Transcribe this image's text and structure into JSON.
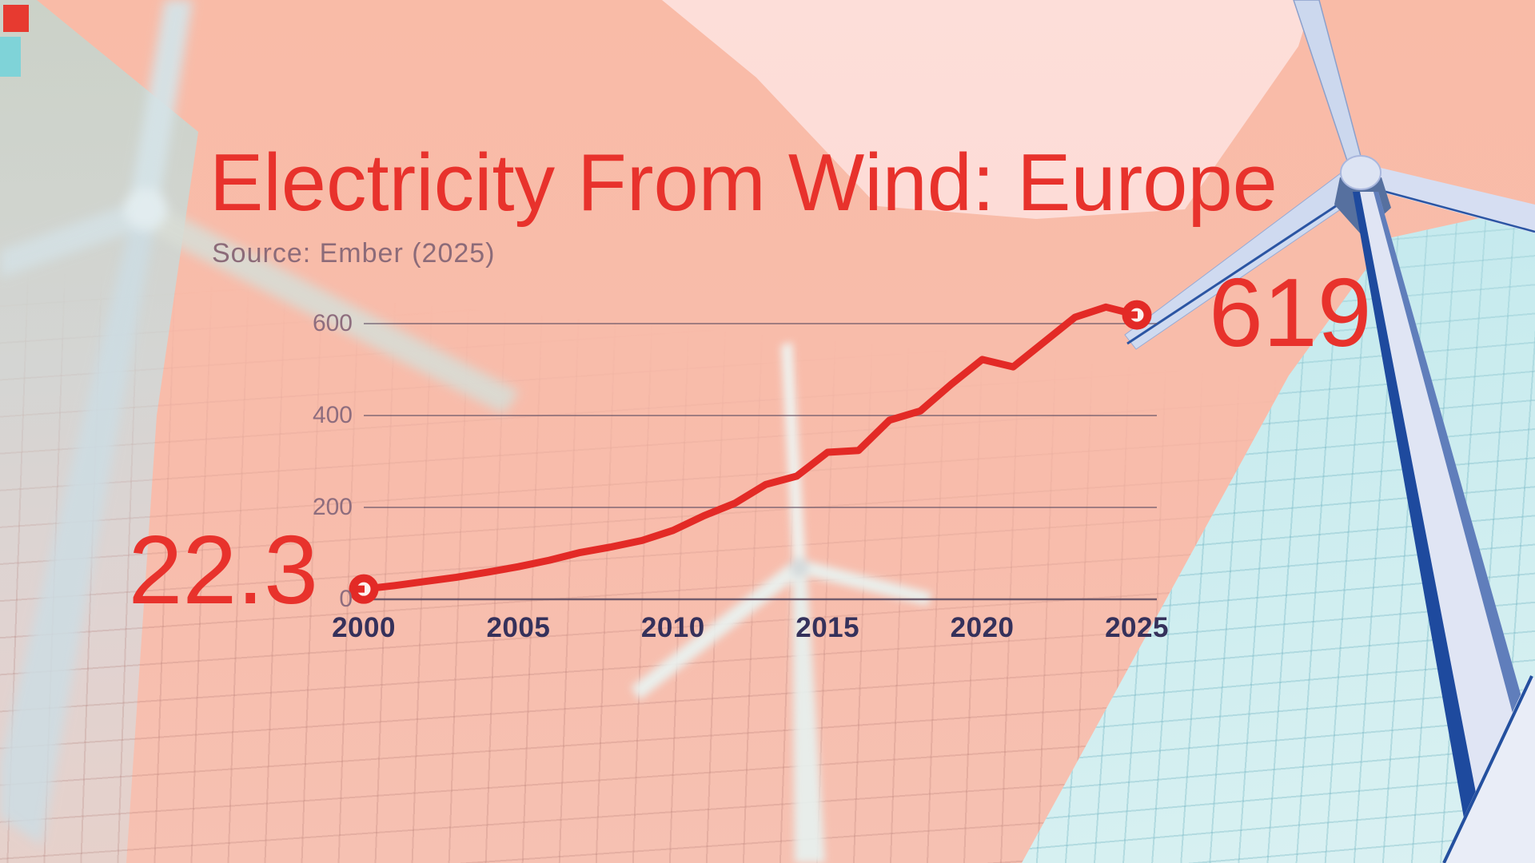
{
  "header": {
    "title": "Electricity From Wind: Europe",
    "source": "Source: Ember (2025)"
  },
  "chart_data": {
    "type": "line",
    "title": "Electricity From Wind: Europe",
    "source": "Source: Ember (2025)",
    "x": [
      2000,
      2001,
      2002,
      2003,
      2004,
      2005,
      2006,
      2007,
      2008,
      2009,
      2010,
      2011,
      2012,
      2013,
      2014,
      2015,
      2016,
      2017,
      2018,
      2019,
      2020,
      2021,
      2022,
      2023,
      2024,
      2025
    ],
    "values": [
      22.3,
      30,
      39,
      48,
      59,
      71,
      85,
      102,
      114,
      128,
      150,
      182,
      209,
      250,
      268,
      320,
      324,
      390,
      410,
      468,
      522,
      506,
      560,
      614,
      636,
      619
    ],
    "x_ticks": [
      2000,
      2005,
      2010,
      2015,
      2020,
      2025
    ],
    "y_ticks": [
      0,
      200,
      400,
      600
    ],
    "xlim": [
      2000,
      2025
    ],
    "ylim": [
      0,
      695
    ],
    "grid": "horizontal gridlines only",
    "legend": "none",
    "first_point_label": "22.3",
    "last_point_label": "619"
  },
  "colors": {
    "line_red": "#e32a26",
    "title_red": "#e8322c",
    "marker_fill": "#fdf2ef",
    "salmon_bg": "#f8bcab",
    "light_pink_bg": "#fcd8d2",
    "cyan_bg": "#bfe6ed",
    "gray_left_bg": "#cfd4cd",
    "gridline": "#5a4a60",
    "y_tick_text": "#8e6d7e",
    "x_tick_text": "#35315b",
    "source_text": "#8c6b79"
  }
}
